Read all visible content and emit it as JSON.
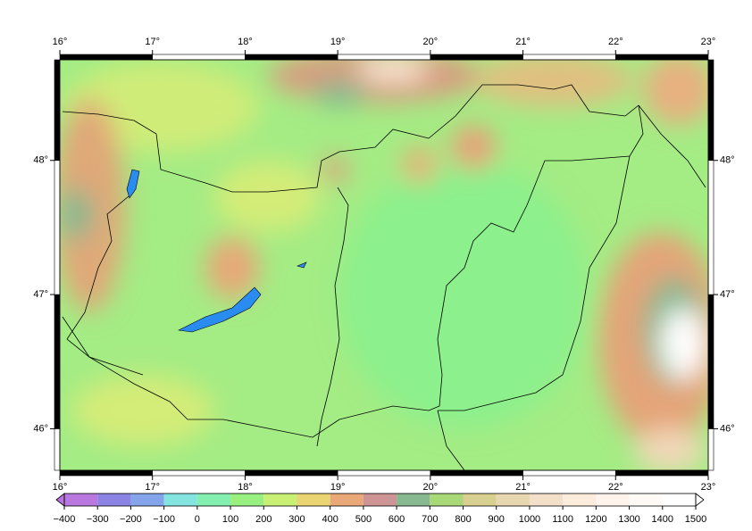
{
  "map": {
    "xlim": [
      16,
      23
    ],
    "ylim": [
      45.69,
      48.75
    ],
    "xticks": [
      {
        "value": 16,
        "label": "16°"
      },
      {
        "value": 17,
        "label": "17°"
      },
      {
        "value": 18,
        "label": "18°"
      },
      {
        "value": 19,
        "label": "19°"
      },
      {
        "value": 20,
        "label": "20°"
      },
      {
        "value": 21,
        "label": "21°"
      },
      {
        "value": 22,
        "label": "22°"
      },
      {
        "value": 23,
        "label": "23°"
      }
    ],
    "yticks": [
      {
        "value": 46,
        "label": "46°"
      },
      {
        "value": 47,
        "label": "47°"
      },
      {
        "value": 48,
        "label": "48°"
      }
    ]
  },
  "colorbar": {
    "ticks": [
      {
        "value": -400,
        "label": "−400"
      },
      {
        "value": -300,
        "label": "−300"
      },
      {
        "value": -200,
        "label": "−200"
      },
      {
        "value": -100,
        "label": "−100"
      },
      0,
      100,
      200,
      300,
      400,
      500,
      600,
      700,
      800,
      900,
      1000,
      1100,
      1200,
      1300,
      1400,
      1500
    ],
    "colors": [
      "#b878e0",
      "#8c84e4",
      "#84a4ec",
      "#84e4e0",
      "#84f0b0",
      "#98f080",
      "#c8f074",
      "#ecd474",
      "#e8a878",
      "#cc9494",
      "#88b890",
      "#a8d878",
      "#d8d090",
      "#e8d8b0",
      "#f4e0c8",
      "#fcecdc",
      "#fff4ec",
      "#fffaf6",
      "#ffffff"
    ]
  }
}
